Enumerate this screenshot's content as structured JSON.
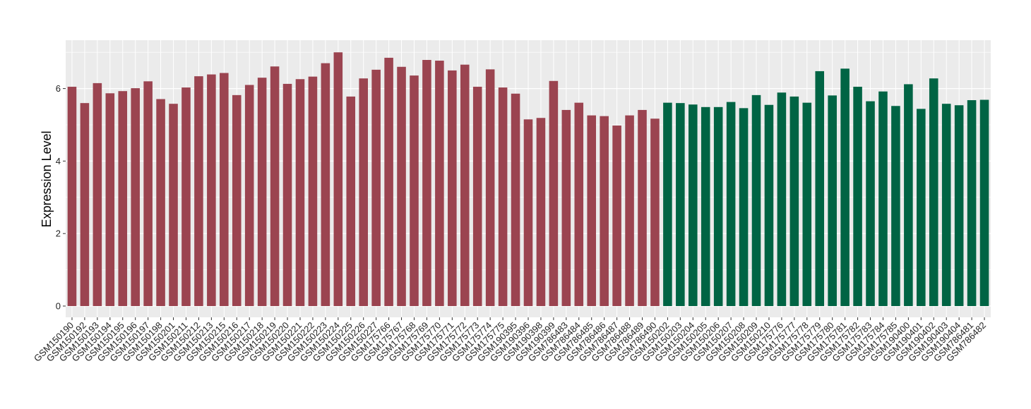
{
  "chart_data": {
    "type": "bar",
    "xlabel": "",
    "ylabel": "Expression Level",
    "ylim": [
      0,
      7.2
    ],
    "yticks": [
      0,
      2,
      4,
      6
    ],
    "grid": true,
    "legend": "none",
    "colors": {
      "background": "#ebebeb",
      "grid_major": "#ffffff",
      "group1": "#9b4450",
      "group2": "#006444"
    },
    "categories": [
      "GSM150190",
      "GSM150192",
      "GSM150193",
      "GSM150194",
      "GSM150195",
      "GSM150196",
      "GSM150197",
      "GSM150198",
      "GSM150201",
      "GSM150211",
      "GSM150212",
      "GSM150213",
      "GSM150215",
      "GSM150216",
      "GSM150217",
      "GSM150218",
      "GSM150219",
      "GSM150220",
      "GSM150221",
      "GSM150222",
      "GSM150223",
      "GSM150224",
      "GSM150225",
      "GSM150226",
      "GSM150227",
      "GSM175766",
      "GSM175767",
      "GSM175768",
      "GSM175769",
      "GSM175770",
      "GSM175771",
      "GSM175772",
      "GSM175773",
      "GSM175774",
      "GSM175775",
      "GSM190395",
      "GSM190396",
      "GSM190398",
      "GSM190399",
      "GSM786483",
      "GSM786484",
      "GSM786485",
      "GSM786486",
      "GSM786487",
      "GSM786488",
      "GSM786489",
      "GSM786490",
      "GSM150202",
      "GSM150203",
      "GSM150204",
      "GSM150205",
      "GSM150206",
      "GSM150207",
      "GSM150208",
      "GSM150209",
      "GSM150210",
      "GSM175776",
      "GSM175777",
      "GSM175778",
      "GSM175779",
      "GSM175780",
      "GSM175781",
      "GSM175782",
      "GSM175783",
      "GSM175784",
      "GSM175785",
      "GSM190400",
      "GSM190401",
      "GSM190402",
      "GSM190403",
      "GSM190404",
      "GSM786481",
      "GSM786482"
    ],
    "values": [
      6.05,
      5.6,
      6.15,
      5.87,
      5.93,
      6.01,
      6.2,
      5.71,
      5.58,
      6.03,
      6.34,
      6.39,
      6.43,
      5.82,
      6.1,
      6.3,
      6.61,
      6.13,
      6.26,
      6.33,
      6.7,
      7.0,
      5.78,
      6.28,
      6.52,
      6.85,
      6.6,
      6.36,
      6.79,
      6.77,
      6.5,
      6.66,
      6.05,
      6.53,
      6.03,
      5.86,
      5.15,
      5.19,
      6.21,
      5.41,
      5.61,
      5.26,
      5.24,
      4.98,
      5.26,
      5.41,
      5.17,
      5.61,
      5.6,
      5.56,
      5.49,
      5.49,
      5.63,
      5.46,
      5.82,
      5.55,
      5.89,
      5.78,
      5.61,
      6.48,
      5.81,
      6.55,
      6.05,
      5.65,
      5.92,
      5.52,
      6.12,
      5.44,
      6.28,
      5.58,
      5.54,
      5.68,
      5.69
    ],
    "groups": [
      1,
      1,
      1,
      1,
      1,
      1,
      1,
      1,
      1,
      1,
      1,
      1,
      1,
      1,
      1,
      1,
      1,
      1,
      1,
      1,
      1,
      1,
      1,
      1,
      1,
      1,
      1,
      1,
      1,
      1,
      1,
      1,
      1,
      1,
      1,
      1,
      1,
      1,
      1,
      1,
      1,
      1,
      1,
      1,
      1,
      1,
      1,
      2,
      2,
      2,
      2,
      2,
      2,
      2,
      2,
      2,
      2,
      2,
      2,
      2,
      2,
      2,
      2,
      2,
      2,
      2,
      2,
      2,
      2,
      2,
      2,
      2,
      2
    ]
  }
}
